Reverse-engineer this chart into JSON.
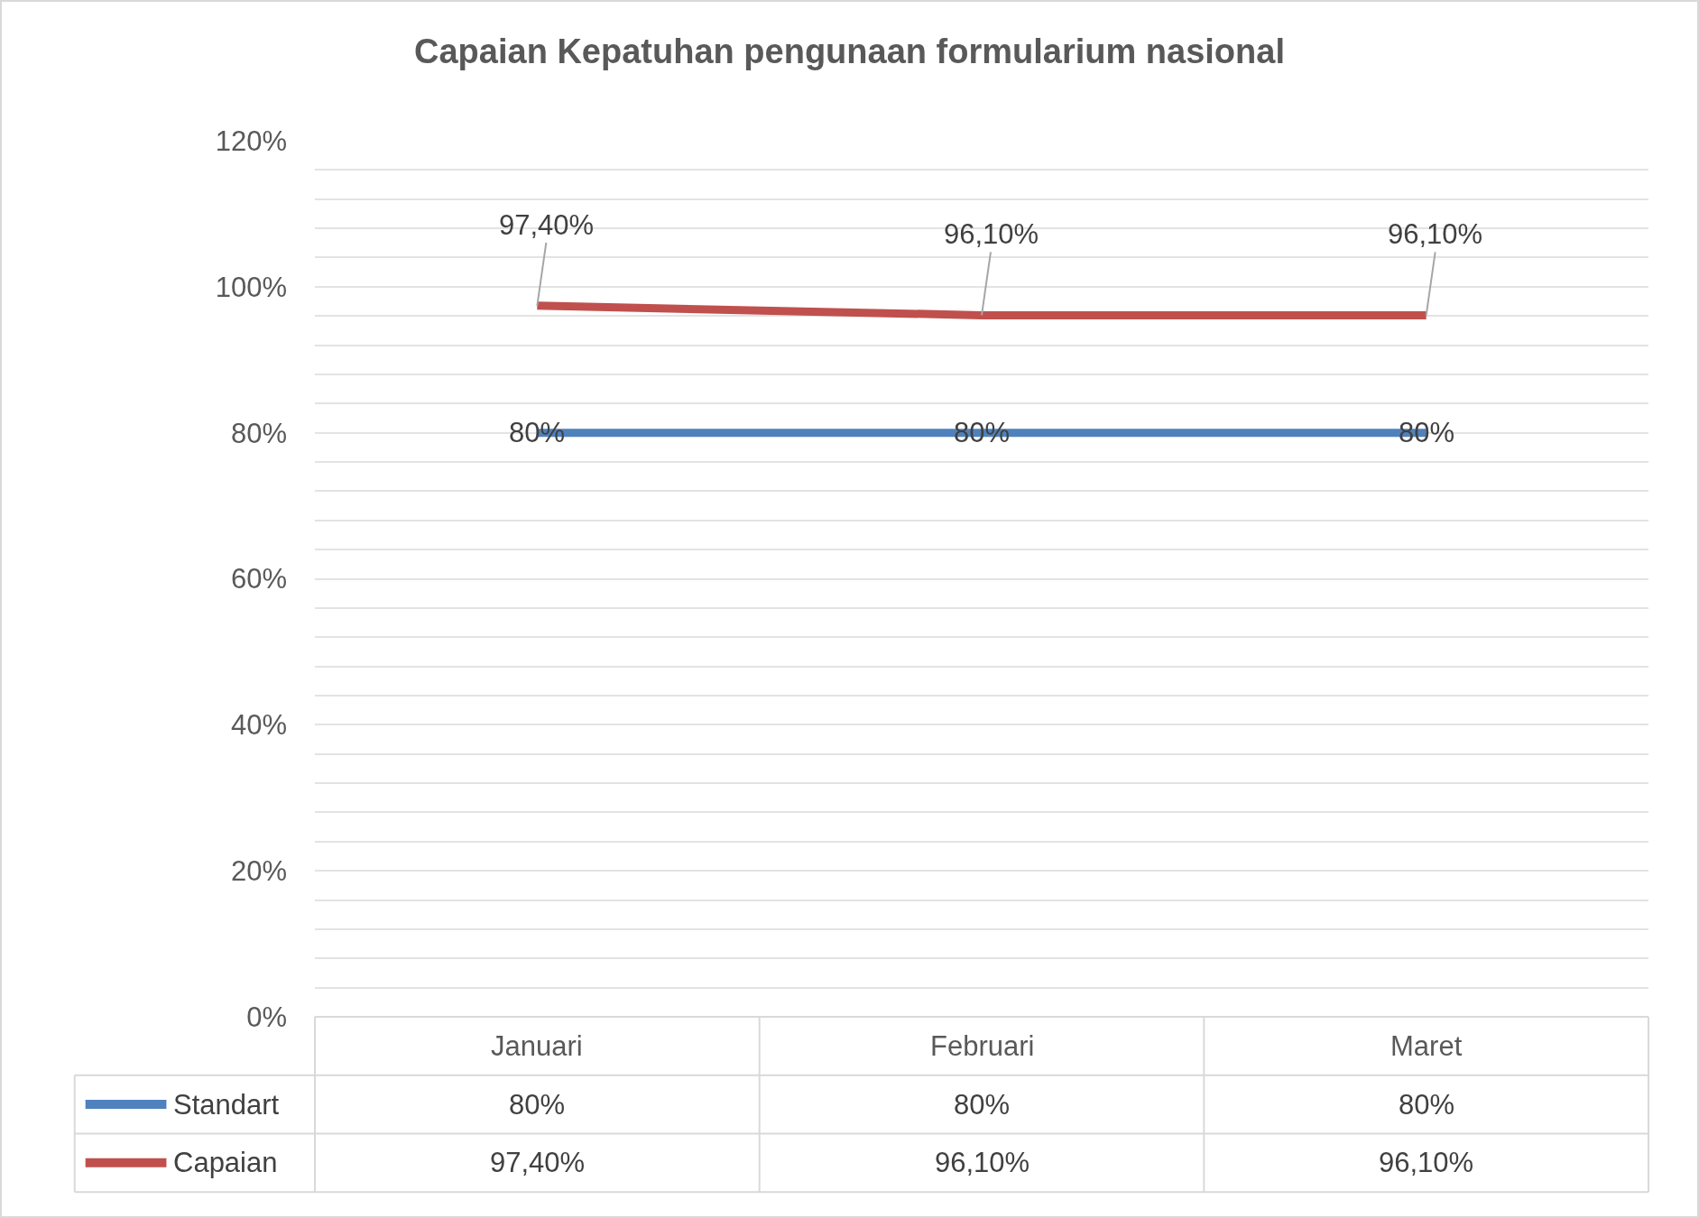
{
  "chart_data": {
    "type": "line",
    "title": "Capaian Kepatuhan pengunaan formularium nasional",
    "categories": [
      "Januari",
      "Februari",
      "Maret"
    ],
    "series": [
      {
        "name": "Standart",
        "color": "#4f81bd",
        "values": [
          80,
          80,
          80
        ],
        "value_labels": [
          "80%",
          "80%",
          "80%"
        ]
      },
      {
        "name": "Capaian",
        "color": "#c0504d",
        "values": [
          97.4,
          96.1,
          96.1
        ],
        "value_labels": [
          "97,40%",
          "96,10%",
          "96,10%"
        ]
      }
    ],
    "ylim": [
      0,
      120
    ],
    "yticks": [
      {
        "value": 0,
        "label": "0%"
      },
      {
        "value": 4,
        "label": null
      },
      {
        "value": 8,
        "label": null
      },
      {
        "value": 12,
        "label": null
      },
      {
        "value": 16,
        "label": null
      },
      {
        "value": 20,
        "label": "20%"
      },
      {
        "value": 24,
        "label": null
      },
      {
        "value": 28,
        "label": null
      },
      {
        "value": 32,
        "label": null
      },
      {
        "value": 36,
        "label": null
      },
      {
        "value": 40,
        "label": "40%"
      },
      {
        "value": 44,
        "label": null
      },
      {
        "value": 48,
        "label": null
      },
      {
        "value": 52,
        "label": null
      },
      {
        "value": 56,
        "label": null
      },
      {
        "value": 60,
        "label": "60%"
      },
      {
        "value": 64,
        "label": null
      },
      {
        "value": 68,
        "label": null
      },
      {
        "value": 72,
        "label": null
      },
      {
        "value": 76,
        "label": null
      },
      {
        "value": 80,
        "label": "80%"
      },
      {
        "value": 84,
        "label": null
      },
      {
        "value": 88,
        "label": null
      },
      {
        "value": 92,
        "label": null
      },
      {
        "value": 96,
        "label": null
      },
      {
        "value": 100,
        "label": "100%"
      },
      {
        "value": 104,
        "label": null
      },
      {
        "value": 108,
        "label": null
      },
      {
        "value": 112,
        "label": null
      },
      {
        "value": 116,
        "label": null
      },
      {
        "value": 120,
        "label": "120%"
      }
    ],
    "grid": "y",
    "legend": "bottom",
    "marker": "none",
    "line_style": "solid"
  }
}
